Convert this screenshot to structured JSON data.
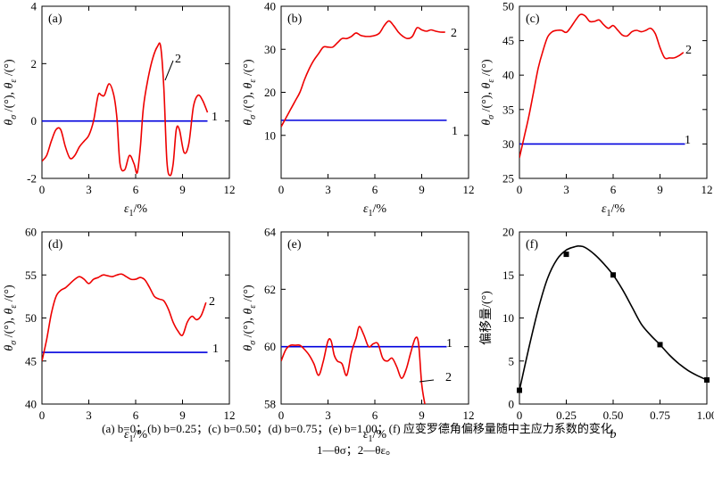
{
  "caption": {
    "line1": "(a) b=0；(b) b=0.25；(c) b=0.50；(d) b=0.75；(e) b=1.00；(f) 应变罗德角偏移量随中主应力系数的变化",
    "line2": "1—θσ；2—θε。"
  },
  "colors": {
    "line1": "#0000dd",
    "line2": "#ee0000",
    "curve_f": "#000000",
    "axis": "#000000"
  },
  "chart_data": [
    {
      "type": "line",
      "panel_label": "(a)",
      "xlabel": "ε1/%",
      "ylabel": "θσ /(°), θε /(°)",
      "xlim": [
        0,
        12
      ],
      "ylim": [
        -2,
        4
      ],
      "xticks": [
        0,
        3,
        6,
        9,
        12
      ],
      "yticks": [
        -2,
        0,
        2,
        4
      ],
      "series": [
        {
          "name": "1",
          "x": [
            0,
            10.6
          ],
          "y": [
            0,
            0
          ]
        },
        {
          "name": "2",
          "x": [
            0,
            0.3,
            0.6,
            0.9,
            1.2,
            1.5,
            1.8,
            2.1,
            2.4,
            2.7,
            3.0,
            3.3,
            3.6,
            3.8,
            4.0,
            4.3,
            4.6,
            4.8,
            5.0,
            5.3,
            5.6,
            5.9,
            6.1,
            6.3,
            6.5,
            6.8,
            7.1,
            7.4,
            7.6,
            7.8,
            8.0,
            8.2,
            8.4,
            8.6,
            8.8,
            9.1,
            9.4,
            9.7,
            10.0,
            10.3,
            10.6
          ],
          "y": [
            -1.4,
            -1.2,
            -0.7,
            -0.3,
            -0.3,
            -0.9,
            -1.3,
            -1.2,
            -0.9,
            -0.7,
            -0.5,
            0.0,
            0.9,
            0.9,
            0.9,
            1.3,
            0.9,
            0.1,
            -1.5,
            -1.7,
            -1.2,
            -1.5,
            -1.8,
            -0.9,
            0.5,
            1.5,
            2.2,
            2.6,
            2.6,
            1.2,
            -1.4,
            -1.9,
            -1.5,
            -0.3,
            -0.3,
            -1.1,
            -0.8,
            0.5,
            0.9,
            0.7,
            0.3
          ]
        }
      ]
    },
    {
      "type": "line",
      "panel_label": "(b)",
      "xlabel": "ε1/%",
      "ylabel": "θσ /(°), θε /(°)",
      "xlim": [
        0,
        12
      ],
      "ylim": [
        0,
        40
      ],
      "xticks": [
        0,
        3,
        6,
        9,
        12
      ],
      "yticks": [
        10,
        20,
        30,
        40
      ],
      "series": [
        {
          "name": "1",
          "x": [
            0,
            10.6
          ],
          "y": [
            13.5,
            13.5
          ]
        },
        {
          "name": "2",
          "x": [
            0,
            0.3,
            0.6,
            0.9,
            1.2,
            1.5,
            1.8,
            2.1,
            2.4,
            2.7,
            3.0,
            3.3,
            3.6,
            3.9,
            4.2,
            4.5,
            4.8,
            5.1,
            5.4,
            5.7,
            6.0,
            6.3,
            6.6,
            6.9,
            7.2,
            7.5,
            7.8,
            8.1,
            8.4,
            8.7,
            9.0,
            9.3,
            9.6,
            9.9,
            10.2,
            10.5
          ],
          "y": [
            12,
            14,
            16,
            18,
            20,
            23,
            25.5,
            27.5,
            29,
            30.5,
            30.5,
            30.5,
            31.5,
            32.5,
            32.5,
            33,
            33.8,
            33.2,
            33,
            33,
            33.2,
            33.8,
            35.5,
            36.6,
            35.5,
            34,
            33,
            32.5,
            33,
            35,
            34.5,
            34.2,
            34.5,
            34.2,
            34,
            34
          ]
        }
      ]
    },
    {
      "type": "line",
      "panel_label": "(c)",
      "xlabel": "ε1/%",
      "ylabel": "θσ /(°), θε /(°)",
      "xlim": [
        0,
        12
      ],
      "ylim": [
        25,
        50
      ],
      "xticks": [
        0,
        3,
        6,
        9,
        12
      ],
      "yticks": [
        25,
        30,
        35,
        40,
        45,
        50
      ],
      "series": [
        {
          "name": "1",
          "x": [
            0,
            10.6
          ],
          "y": [
            30,
            30
          ]
        },
        {
          "name": "2",
          "x": [
            0,
            0.3,
            0.6,
            0.9,
            1.2,
            1.5,
            1.8,
            2.1,
            2.4,
            2.7,
            3.0,
            3.3,
            3.6,
            3.9,
            4.2,
            4.5,
            4.8,
            5.1,
            5.4,
            5.7,
            6.0,
            6.3,
            6.6,
            6.9,
            7.2,
            7.5,
            7.8,
            8.1,
            8.4,
            8.7,
            9.0,
            9.3,
            9.6,
            9.9,
            10.2,
            10.5
          ],
          "y": [
            28,
            31,
            34,
            37.5,
            41,
            43.5,
            45.5,
            46.3,
            46.5,
            46.5,
            46.2,
            47,
            48,
            48.8,
            48.6,
            47.8,
            47.8,
            48,
            47.3,
            46.8,
            47.2,
            46.5,
            45.8,
            45.7,
            46.3,
            46.5,
            46.3,
            46.5,
            46.8,
            46,
            44,
            42.5,
            42.5,
            42.5,
            42.8,
            43.3
          ]
        }
      ]
    },
    {
      "type": "line",
      "panel_label": "(d)",
      "xlabel": "ε1/%",
      "ylabel": "θσ /(°), θε /(°)",
      "xlim": [
        0,
        12
      ],
      "ylim": [
        40,
        60
      ],
      "xticks": [
        0,
        3,
        6,
        9,
        12
      ],
      "yticks": [
        40,
        45,
        50,
        55,
        60
      ],
      "series": [
        {
          "name": "1",
          "x": [
            0,
            10.6
          ],
          "y": [
            46,
            46
          ]
        },
        {
          "name": "2",
          "x": [
            0,
            0.3,
            0.6,
            0.9,
            1.2,
            1.5,
            1.8,
            2.1,
            2.4,
            2.7,
            3.0,
            3.3,
            3.6,
            3.9,
            4.2,
            4.5,
            4.8,
            5.1,
            5.4,
            5.7,
            6.0,
            6.3,
            6.6,
            6.9,
            7.2,
            7.5,
            7.8,
            8.1,
            8.4,
            8.7,
            9.0,
            9.3,
            9.6,
            9.9,
            10.2,
            10.5
          ],
          "y": [
            45,
            47.5,
            50.5,
            52.5,
            53.2,
            53.5,
            54,
            54.5,
            54.8,
            54.5,
            54,
            54.5,
            54.7,
            55,
            54.9,
            54.8,
            55,
            55.1,
            54.8,
            54.5,
            54.5,
            54.7,
            54.4,
            53.5,
            52.5,
            52.2,
            52,
            51,
            49.5,
            48.5,
            48,
            49.5,
            50.2,
            49.8,
            50.3,
            51.8
          ]
        }
      ]
    },
    {
      "type": "line",
      "panel_label": "(e)",
      "xlabel": "ε1/%",
      "ylabel": "θσ /(°), θε /(°)",
      "xlim": [
        0,
        12
      ],
      "ylim": [
        58,
        64
      ],
      "xticks": [
        0,
        3,
        6,
        9,
        12
      ],
      "yticks": [
        58,
        60,
        62,
        64
      ],
      "series": [
        {
          "name": "1",
          "x": [
            0,
            10.6
          ],
          "y": [
            60,
            60
          ]
        },
        {
          "name": "2",
          "x": [
            0,
            0.3,
            0.6,
            0.9,
            1.2,
            1.5,
            1.8,
            2.1,
            2.4,
            2.7,
            3.0,
            3.2,
            3.4,
            3.6,
            3.9,
            4.2,
            4.5,
            4.8,
            5.0,
            5.3,
            5.6,
            5.9,
            6.2,
            6.5,
            6.8,
            7.1,
            7.4,
            7.7,
            8.0,
            8.3,
            8.6,
            8.8,
            9.0,
            9.2
          ],
          "y": [
            59.5,
            59.9,
            60.05,
            60.05,
            60.05,
            59.9,
            59.7,
            59.4,
            59.0,
            59.5,
            60.2,
            60.2,
            59.7,
            59.5,
            59.4,
            59.0,
            59.8,
            60.3,
            60.7,
            60.4,
            60.0,
            60.1,
            60.1,
            59.6,
            59.5,
            59.6,
            59.3,
            58.9,
            59.2,
            59.8,
            60.3,
            60.1,
            58.7,
            58.0
          ]
        }
      ]
    },
    {
      "type": "line",
      "panel_label": "(f)",
      "xlabel": "b",
      "ylabel": "偏移量/(°)",
      "xlim": [
        0,
        1.0
      ],
      "ylim": [
        0,
        20
      ],
      "xticks": [
        "0",
        "0.25",
        "0.50",
        "0.75",
        "1.00"
      ],
      "yticks": [
        0,
        5,
        10,
        15,
        20
      ],
      "series": [
        {
          "name": "points",
          "x": [
            0,
            0.25,
            0.5,
            0.75,
            1.0
          ],
          "y": [
            1.6,
            17.4,
            15.0,
            6.9,
            2.8
          ]
        },
        {
          "name": "fit",
          "x": [
            0,
            0.05,
            0.1,
            0.15,
            0.2,
            0.25,
            0.3,
            0.32,
            0.35,
            0.4,
            0.45,
            0.5,
            0.55,
            0.6,
            0.65,
            0.7,
            0.75,
            0.8,
            0.85,
            0.9,
            0.95,
            1.0
          ],
          "y": [
            1.6,
            6.5,
            11.0,
            14.6,
            16.8,
            17.9,
            18.3,
            18.35,
            18.2,
            17.4,
            16.3,
            15.0,
            13.3,
            11.3,
            9.3,
            8.0,
            6.9,
            5.7,
            4.7,
            3.9,
            3.3,
            2.8
          ]
        }
      ]
    }
  ]
}
